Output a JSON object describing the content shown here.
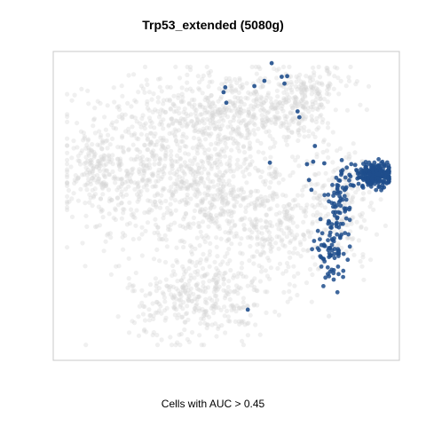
{
  "chart_data": {
    "type": "scatter",
    "title": "Trp53_extended (5080g)",
    "caption": "Cells with AUC > 0.45",
    "axes_visible": false,
    "grid": false,
    "xlim": [
      0,
      100
    ],
    "ylim": [
      0,
      100
    ],
    "colors": {
      "background_cells": "#d3d3d3",
      "highlight_cells": "#1f4e8c",
      "panel_border": "#c8c8c8"
    },
    "background_cells": {
      "approx_count": 2500,
      "clusters": [
        {
          "name": "upper-left",
          "cx": 28,
          "cy": 63,
          "sx": 12,
          "sy": 14,
          "share": 0.27
        },
        {
          "name": "upper-center",
          "cx": 50,
          "cy": 80,
          "sx": 10,
          "sy": 7,
          "share": 0.12
        },
        {
          "name": "upper-right-ridge",
          "cx": 68,
          "cy": 82,
          "sx": 7,
          "sy": 6,
          "share": 0.08
        },
        {
          "name": "center",
          "cx": 45,
          "cy": 55,
          "sx": 6,
          "sy": 10,
          "share": 0.1
        },
        {
          "name": "middle-right",
          "cx": 63,
          "cy": 46,
          "sx": 8,
          "sy": 11,
          "share": 0.14
        },
        {
          "name": "lower-center",
          "cx": 42,
          "cy": 20,
          "sx": 10,
          "sy": 7,
          "share": 0.14
        },
        {
          "name": "right-edge",
          "cx": 84,
          "cy": 52,
          "sx": 5,
          "sy": 10,
          "share": 0.07
        },
        {
          "name": "far-left",
          "cx": 12,
          "cy": 62,
          "sx": 4,
          "sy": 6,
          "share": 0.04
        },
        {
          "name": "top-right-tip",
          "cx": 76,
          "cy": 88,
          "sx": 5,
          "sy": 4,
          "share": 0.04
        }
      ]
    },
    "highlight_cells": {
      "approx_count": 420,
      "clusters": [
        {
          "name": "main-right-cluster",
          "cx": 93,
          "cy": 60,
          "sx": 3.4,
          "sy": 2.0,
          "n": 230
        },
        {
          "name": "vertical-branch",
          "cx": 83,
          "cy": 52,
          "sx": 2.2,
          "sy": 5,
          "n": 60
        },
        {
          "name": "lower-branch",
          "cx": 80,
          "cy": 36,
          "sx": 2.4,
          "sy": 4.5,
          "n": 80
        }
      ],
      "isolated_points": [
        [
          63.1,
          96.2
        ],
        [
          61.0,
          90.5
        ],
        [
          58.1,
          88.8
        ],
        [
          66.0,
          91.8
        ],
        [
          67.6,
          92.0
        ],
        [
          66.8,
          89.6
        ],
        [
          49.7,
          88.4
        ],
        [
          49.2,
          86.8
        ],
        [
          50.0,
          83.4
        ],
        [
          70.6,
          80.6
        ],
        [
          71.1,
          78.7
        ],
        [
          75.6,
          69.4
        ],
        [
          62.6,
          64.0
        ],
        [
          75.1,
          64.3
        ],
        [
          73.3,
          63.5
        ],
        [
          78.3,
          63.8
        ],
        [
          73.9,
          58.4
        ],
        [
          74.6,
          55.2
        ],
        [
          56.2,
          16.4
        ]
      ]
    }
  }
}
